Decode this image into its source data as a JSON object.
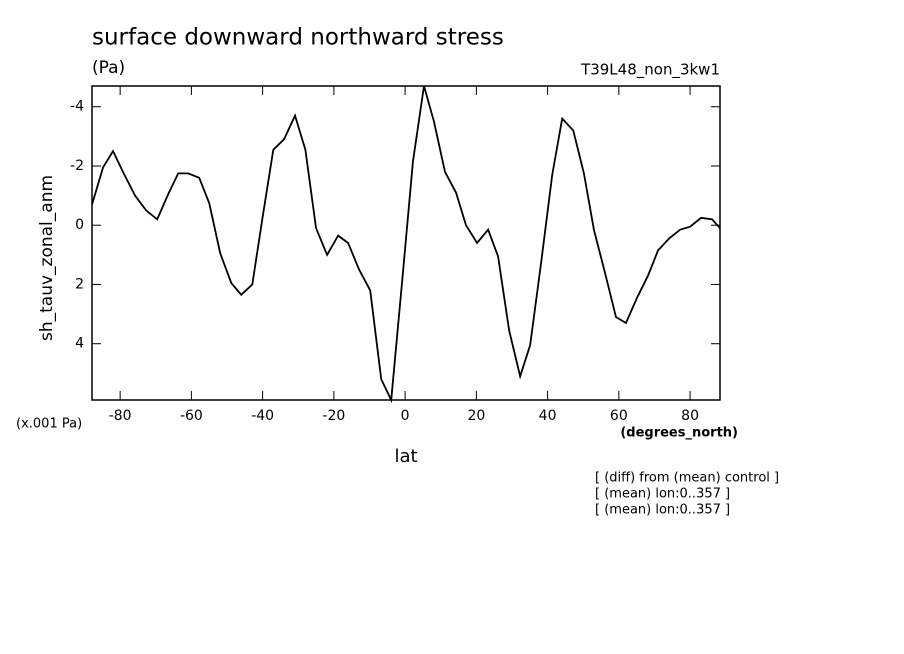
{
  "chart_data": {
    "type": "line",
    "title": "surface downward northward stress",
    "subtitle": "(Pa)",
    "run_label": "T39L48_non_3kw1",
    "y_label": "sh_tauv_zonal_anm",
    "y_unit": "(x.001 Pa)",
    "x_label": "lat",
    "x_unit": "(degrees_north)",
    "notes": [
      "[ (diff) from (mean) control ]",
      "[ (mean) lon:0..357 ]",
      "[ (mean) lon:0..357 ]"
    ],
    "xlim": [
      -87.9,
      88.4
    ],
    "ylim": [
      5.9,
      -4.7
    ],
    "xticks": [
      -80,
      -60,
      -40,
      -20,
      0,
      20,
      40,
      60,
      80
    ],
    "yticks": [
      4,
      2,
      0,
      -2,
      -4
    ],
    "series": [
      {
        "color": "#000000",
        "x": [
          -87.9,
          -84.8,
          -82,
          -79,
          -75.8,
          -72.7,
          -69.6,
          -66.5,
          -63.7,
          -60.9,
          -57.8,
          -55,
          -51.9,
          -48.8,
          -46,
          -42.9,
          -40.1,
          -37,
          -34,
          -30.9,
          -28,
          -25,
          -21.9,
          -18.8,
          -16,
          -12.9,
          -9.8,
          -6.7,
          -3.9,
          -0.8,
          2.2,
          5.3,
          8.1,
          11.2,
          14.3,
          17.1,
          20.2,
          23.3,
          26.1,
          29.2,
          32.3,
          35.1,
          38.2,
          41.3,
          44.1,
          47.2,
          50.2,
          53,
          56.1,
          59.2,
          62,
          65.1,
          68.2,
          71,
          74.1,
          77.2,
          80,
          83.1,
          86.2,
          88.4
        ],
        "values": [
          -0.7,
          -1.95,
          -2.5,
          -1.75,
          -1.0,
          -0.5,
          -0.2,
          -1.05,
          -1.75,
          -1.75,
          -1.6,
          -0.75,
          0.95,
          1.95,
          2.35,
          2.0,
          -0.2,
          -2.55,
          -2.9,
          -3.7,
          -2.55,
          0.1,
          1.0,
          0.35,
          0.6,
          1.5,
          2.2,
          5.2,
          5.9,
          1.85,
          -2.15,
          -4.7,
          -3.5,
          -1.8,
          -1.1,
          0,
          0.6,
          0.15,
          1.05,
          3.55,
          5.1,
          4.05,
          1.25,
          -1.7,
          -3.6,
          -3.2,
          -1.75,
          0.15,
          1.6,
          3.1,
          3.3,
          2.45,
          1.7,
          0.85,
          0.45,
          0.15,
          0.05,
          -0.25,
          -0.2,
          0.1
        ]
      }
    ]
  }
}
